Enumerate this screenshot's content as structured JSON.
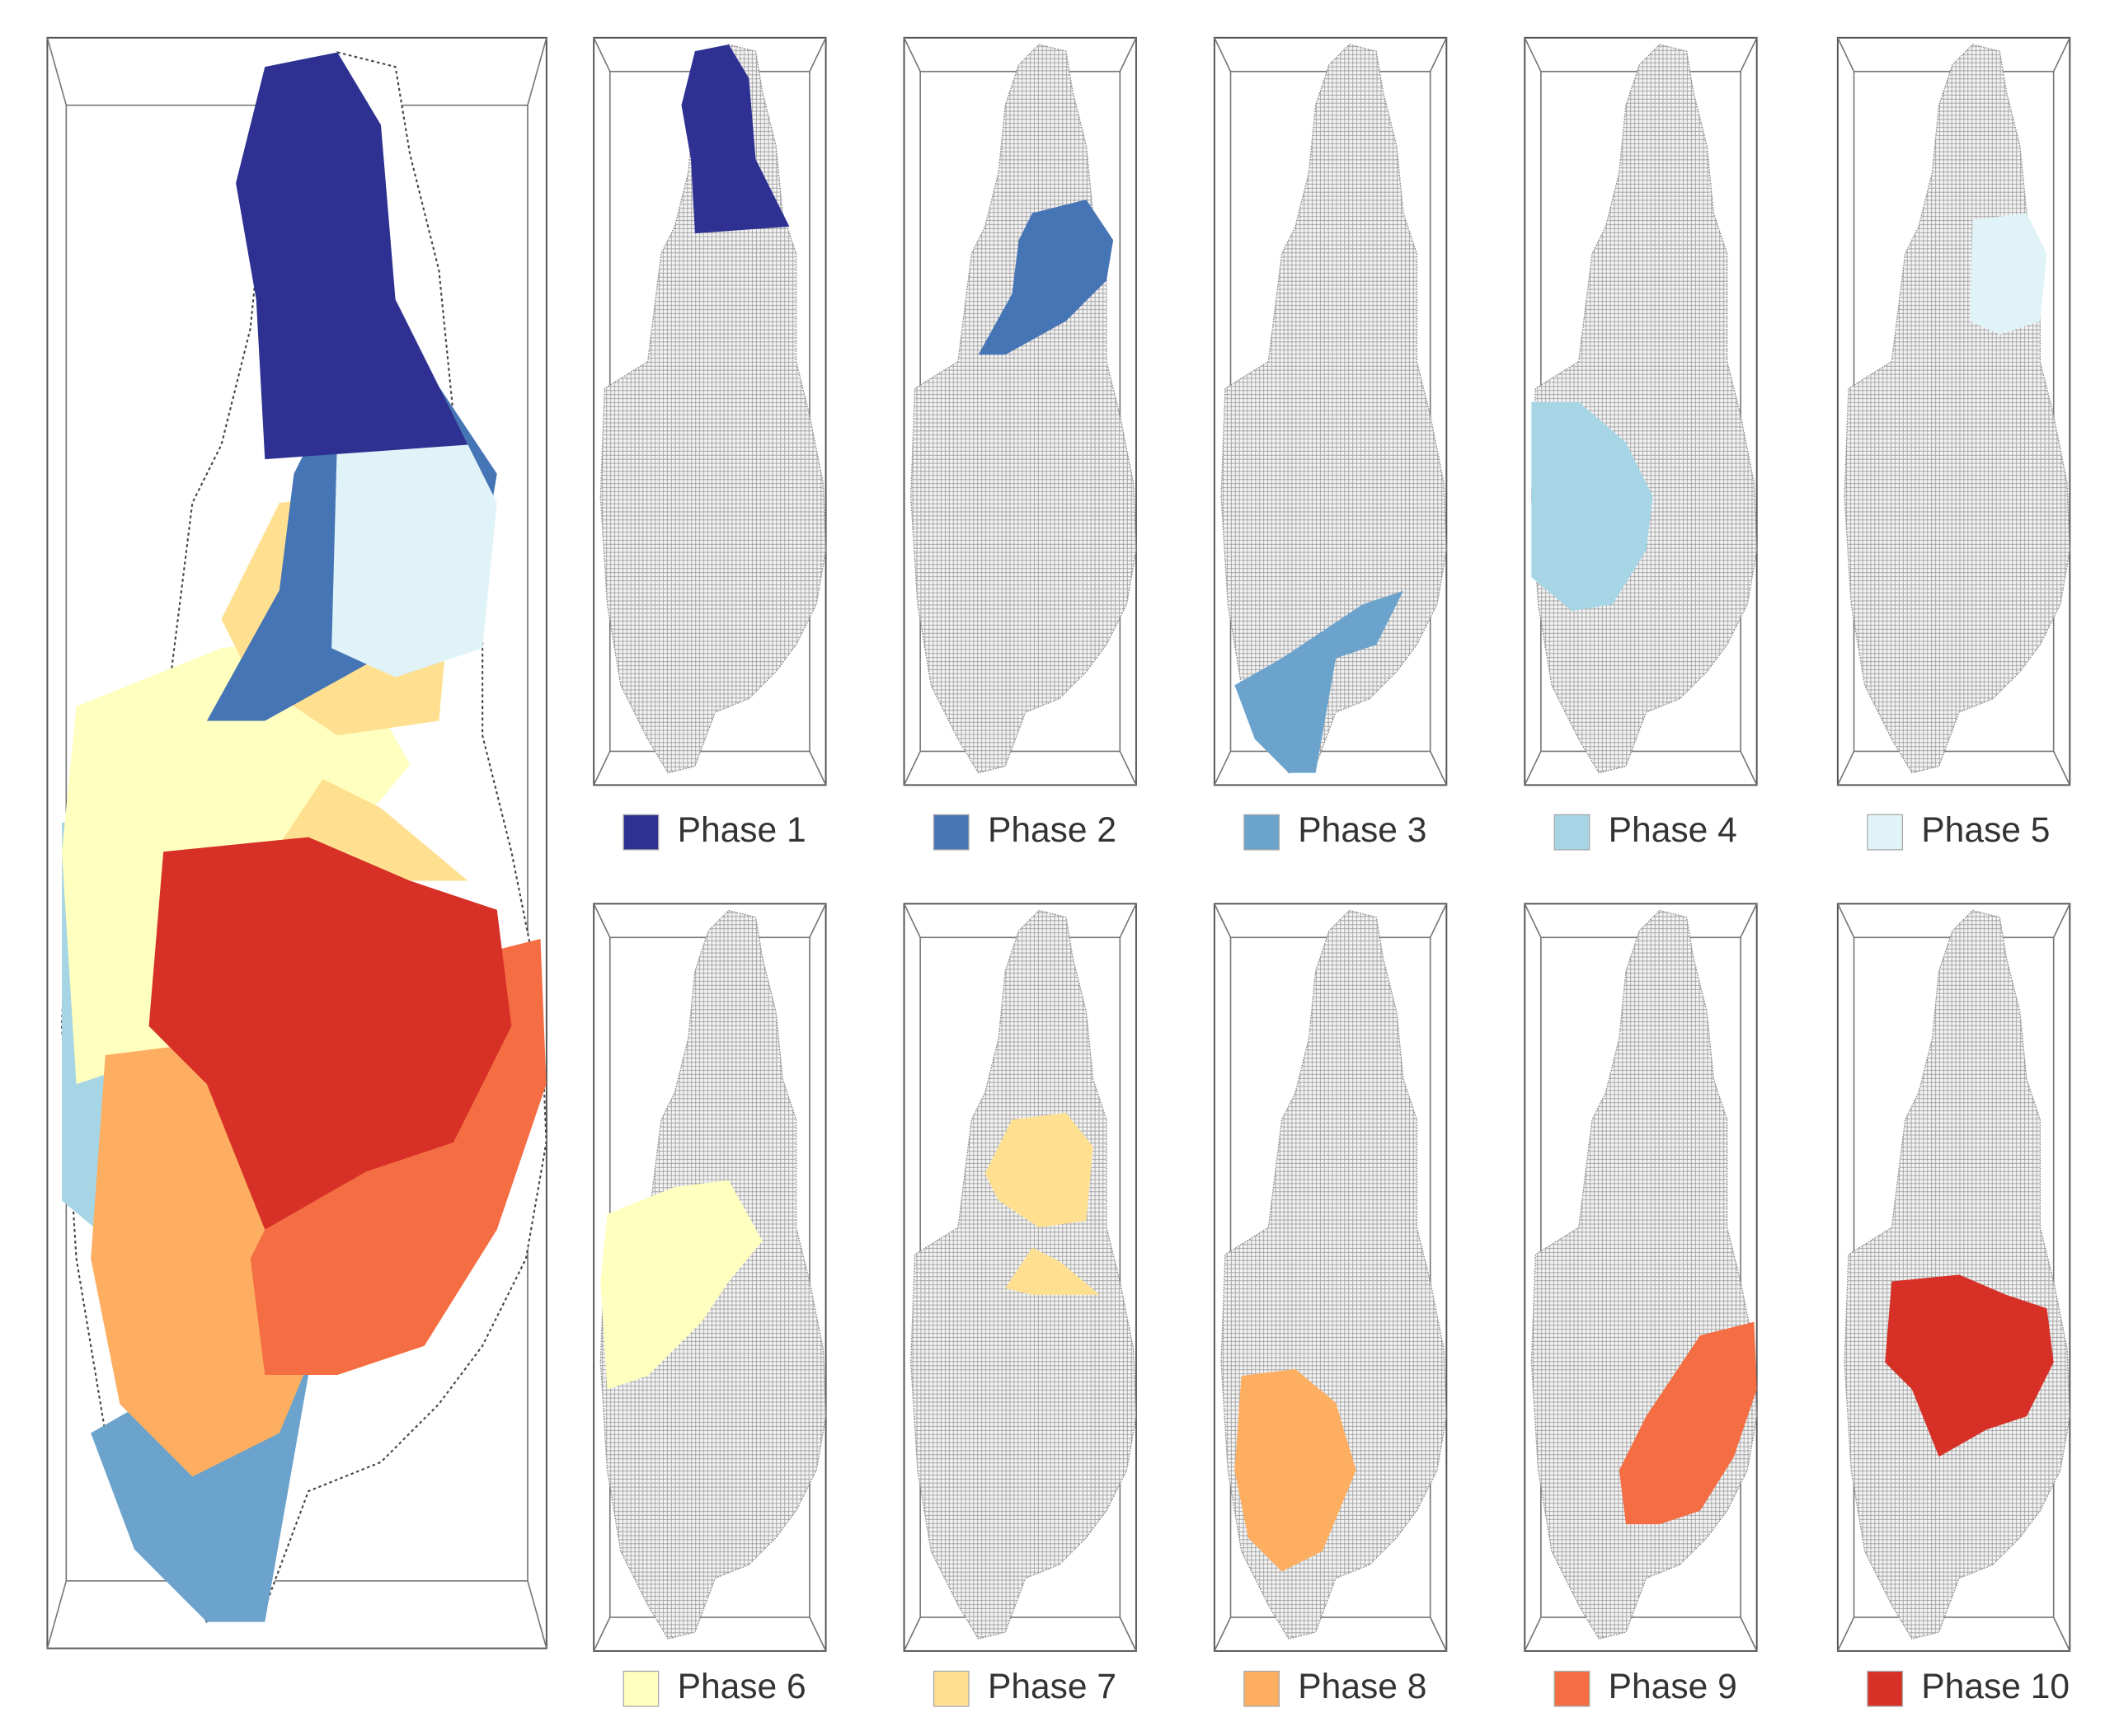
{
  "phases": [
    {
      "label": "Phase 1",
      "color": "#2e3192"
    },
    {
      "label": "Phase 2",
      "color": "#4575b4"
    },
    {
      "label": "Phase 3",
      "color": "#6ba3cc"
    },
    {
      "label": "Phase 4",
      "color": "#a6d5e6"
    },
    {
      "label": "Phase 5",
      "color": "#e0f3f8"
    },
    {
      "label": "Phase 6",
      "color": "#ffffbf"
    },
    {
      "label": "Phase 7",
      "color": "#fee090"
    },
    {
      "label": "Phase 8",
      "color": "#fdae61"
    },
    {
      "label": "Phase 9",
      "color": "#f46d43"
    },
    {
      "label": "Phase 10",
      "color": "#d73027"
    }
  ]
}
